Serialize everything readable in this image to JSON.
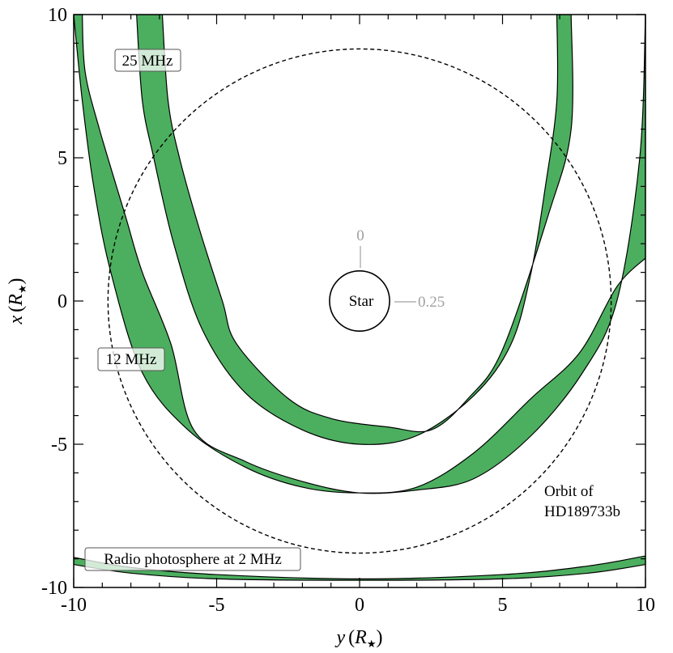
{
  "chart_data": {
    "type": "area",
    "xlim": [
      -10,
      10
    ],
    "ylim": [
      -10,
      10
    ],
    "x_ticks": [
      -10,
      -5,
      0,
      5,
      10
    ],
    "y_ticks": [
      10,
      5,
      0,
      -5,
      -10
    ],
    "x_tick_labels": [
      "-10",
      "-5",
      "0",
      "5",
      "10"
    ],
    "y_tick_labels": [
      "10",
      "5",
      "0",
      "-5",
      "-10"
    ],
    "xlabel": {
      "var": "y",
      "paren_open": "(",
      "unit": "R",
      "sub": "★",
      "paren_close": ")"
    },
    "ylabel": {
      "var": "x",
      "paren_open": "(",
      "unit": "R",
      "sub": "★",
      "paren_close": ")"
    },
    "grid": false,
    "band_color": "#4caf5f",
    "series": [
      {
        "name": "25 MHz",
        "outer": [
          [
            -7.8,
            10
          ],
          [
            -7.6,
            7
          ],
          [
            -7.2,
            5
          ],
          [
            -6.5,
            2
          ],
          [
            -5.5,
            -1
          ],
          [
            -4,
            -3.2
          ],
          [
            -2,
            -4.5
          ],
          [
            0,
            -5
          ],
          [
            2,
            -4.7
          ],
          [
            4,
            -3.3
          ],
          [
            5.3,
            -1.5
          ],
          [
            6,
            1
          ],
          [
            6.5,
            4
          ],
          [
            6.9,
            7
          ],
          [
            6.9,
            10
          ]
        ],
        "inner": [
          [
            -6.9,
            10
          ],
          [
            -6.7,
            7
          ],
          [
            -6.3,
            5
          ],
          [
            -5.6,
            2.5
          ],
          [
            -4.8,
            0
          ],
          [
            -4.3,
            -1.5
          ],
          [
            -2.5,
            -3.4
          ],
          [
            -1,
            -4.1
          ],
          [
            1,
            -4.4
          ],
          [
            2.5,
            -4.5
          ],
          [
            3.8,
            -3.4
          ],
          [
            5,
            -1.7
          ],
          [
            6.6,
            3
          ],
          [
            7.4,
            6
          ],
          [
            7.4,
            10
          ]
        ]
      },
      {
        "name": "12 MHz",
        "outer": [
          [
            -10,
            10
          ],
          [
            -9.7,
            7
          ],
          [
            -9.3,
            4
          ],
          [
            -8.7,
            1
          ],
          [
            -7.6,
            -2.5
          ],
          [
            -6,
            -4.5
          ],
          [
            -4,
            -5.8
          ],
          [
            -2,
            -6.5
          ],
          [
            0,
            -6.7
          ],
          [
            2,
            -6.5
          ],
          [
            4,
            -5.3
          ],
          [
            6,
            -3.4
          ],
          [
            7.7,
            -1.8
          ],
          [
            9,
            0.5
          ],
          [
            10,
            1.5
          ]
        ],
        "inner": [
          [
            -9.7,
            10
          ],
          [
            -9.6,
            8
          ],
          [
            -9.1,
            6
          ],
          [
            -8.2,
            3
          ],
          [
            -7.6,
            1
          ],
          [
            -6.6,
            -1.5
          ],
          [
            -5.8,
            -4.5
          ],
          [
            -4,
            -5.6
          ],
          [
            -2,
            -6.3
          ],
          [
            0,
            -6.7
          ],
          [
            2,
            -6.6
          ],
          [
            4,
            -6.2
          ],
          [
            6,
            -4.7
          ],
          [
            7.8,
            -2.5
          ],
          [
            9,
            0
          ],
          [
            9.8,
            5
          ],
          [
            10,
            10
          ]
        ]
      },
      {
        "name": "Radio photosphere at 2 MHz",
        "outer": [
          [
            -10,
            -9.2
          ],
          [
            -8,
            -9.5
          ],
          [
            -5,
            -9.7
          ],
          [
            0,
            -9.75
          ],
          [
            5,
            -9.7
          ],
          [
            8,
            -9.5
          ],
          [
            10,
            -9.2
          ]
        ],
        "inner": [
          [
            -10,
            -8.95
          ],
          [
            -8,
            -9.3
          ],
          [
            -5,
            -9.55
          ],
          [
            0,
            -9.7
          ],
          [
            5,
            -9.55
          ],
          [
            8,
            -9.25
          ],
          [
            10,
            -8.9
          ]
        ]
      }
    ],
    "orbit": {
      "radius": 8.8,
      "name": "Orbit of HD189733b"
    },
    "star": {
      "radius": 1,
      "label": "Star"
    },
    "annotations": {
      "band_25": "25 MHz",
      "band_12": "12 MHz",
      "band_2": "Radio photosphere at 2 MHz",
      "orbit_line1": "Orbit of",
      "orbit_line2": "HD189733b",
      "star": "Star",
      "phase_0": "0",
      "phase_025": "0.25"
    }
  }
}
